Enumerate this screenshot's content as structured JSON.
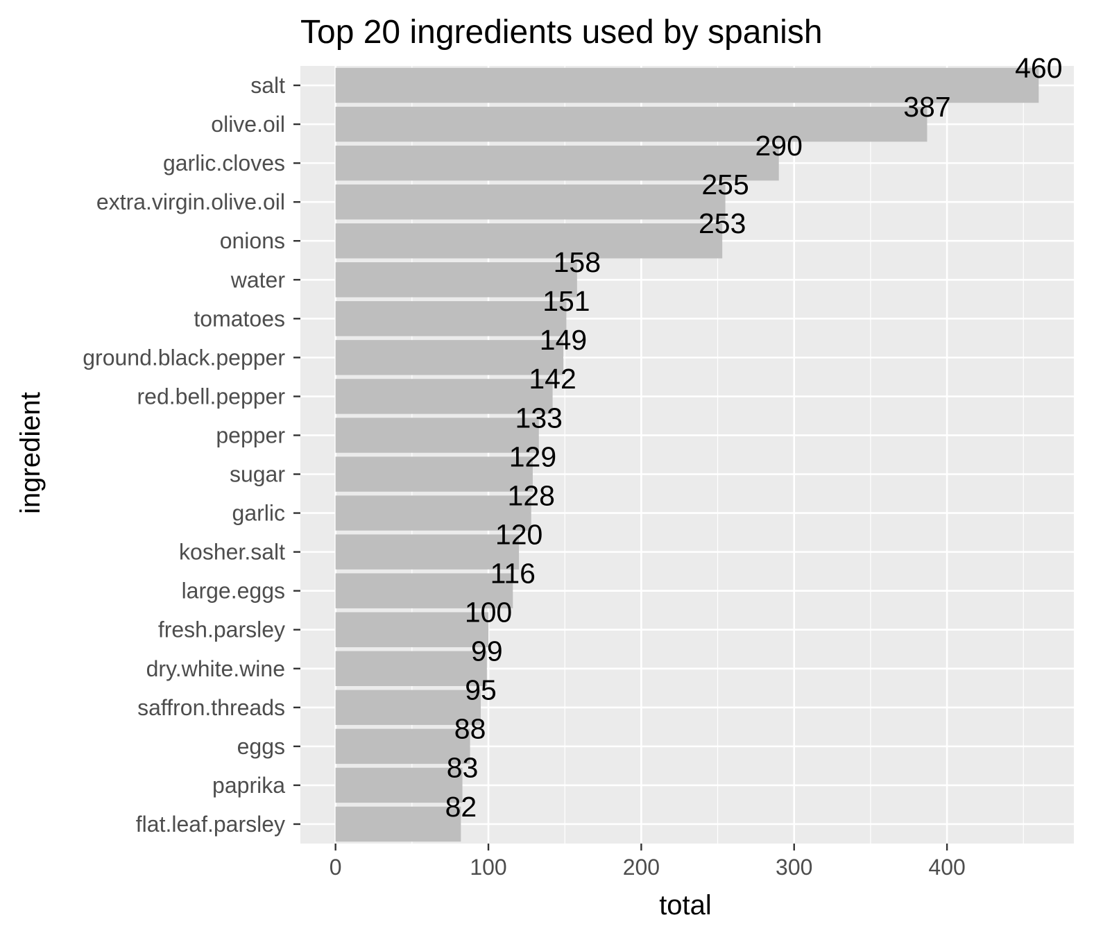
{
  "chart_data": {
    "type": "bar",
    "orientation": "horizontal",
    "title": "Top 20 ingredients used by spanish",
    "xlabel": "total",
    "ylabel": "ingredient",
    "xlim": [
      -23,
      483
    ],
    "xticks": [
      0,
      100,
      200,
      300,
      400
    ],
    "xtick_labels": [
      "0",
      "100",
      "200",
      "300",
      "400"
    ],
    "grid": true,
    "legend": "none",
    "colors": {
      "panel": "#ebebeb",
      "grid": "#ffffff",
      "bar": "#bebebe",
      "tick_text": "#4d4d4d",
      "text": "#000000"
    },
    "categories": [
      "salt",
      "olive.oil",
      "garlic.cloves",
      "extra.virgin.olive.oil",
      "onions",
      "water",
      "tomatoes",
      "ground.black.pepper",
      "red.bell.pepper",
      "pepper",
      "sugar",
      "garlic",
      "kosher.salt",
      "large.eggs",
      "fresh.parsley",
      "dry.white.wine",
      "saffron.threads",
      "eggs",
      "paprika",
      "flat.leaf.parsley"
    ],
    "values": [
      460,
      387,
      290,
      255,
      253,
      158,
      151,
      149,
      142,
      133,
      129,
      128,
      120,
      116,
      100,
      99,
      95,
      88,
      83,
      82
    ]
  }
}
